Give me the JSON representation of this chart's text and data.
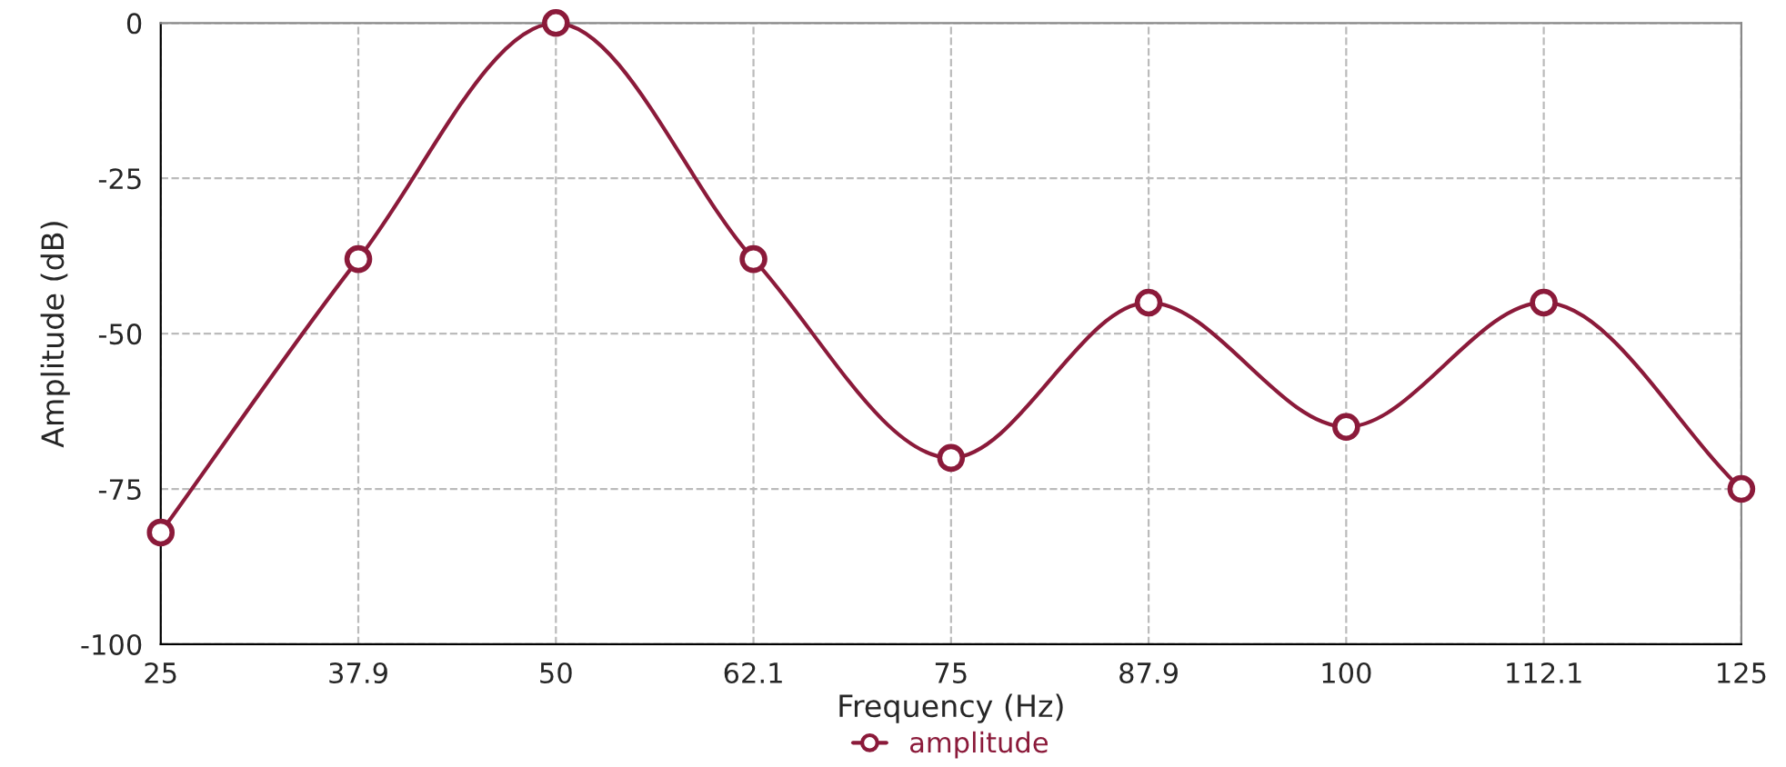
{
  "chart_data": {
    "type": "line",
    "xlabel": "Frequency (Hz)",
    "ylabel": "Amplitude (dB)",
    "categories": [
      "25",
      "37.9",
      "50",
      "62.1",
      "75",
      "87.9",
      "100",
      "112.1",
      "125"
    ],
    "series": [
      {
        "name": "amplitude",
        "color": "#8b1a3a",
        "values": [
          -82,
          -38,
          0,
          -38,
          -70,
          -45,
          -65,
          -45,
          -75
        ]
      }
    ],
    "ylim": [
      -100,
      0
    ],
    "yticks": [
      -100,
      -75,
      -50,
      -25,
      0
    ],
    "grid": true,
    "legend": "bottom",
    "marker": "circle",
    "line_style": "solid"
  }
}
